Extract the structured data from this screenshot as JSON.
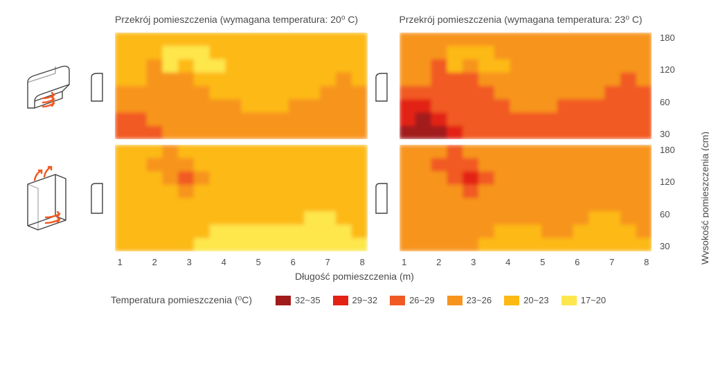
{
  "titles": {
    "t20": "Przekrój pomieszczenia (wymagana temperatura: 20⁰ C)",
    "t23": "Przekrój pomieszczenia (wymagana temperatura: 23⁰ C)"
  },
  "axes": {
    "xlabel": "Długość pomieszczenia (m)",
    "ylabel": "Wysokość pomieszczenia (cm)",
    "xticks": [
      1,
      2,
      3,
      4,
      5,
      6,
      7,
      8
    ],
    "yticks": [
      180,
      120,
      60,
      30
    ],
    "xlim": [
      0.5,
      8.5
    ],
    "ylim": [
      30,
      180
    ],
    "label_fontsize": 14,
    "tick_fontsize": 13,
    "grid": false,
    "background_color": "#ffffff",
    "text_color": "#4a4a4a"
  },
  "palette": {
    "b1": "#a21b1b",
    "b2": "#e32114",
    "b3": "#f15a22",
    "b4": "#f7941e",
    "b5": "#fdb913",
    "b6": "#fde74c",
    "outline": "#414141",
    "arrow": "#f15a22"
  },
  "legend": {
    "title": "Temperatura pomieszczenia (⁰C)",
    "items": [
      {
        "label": "32~35",
        "band": "b1"
      },
      {
        "label": "29~32",
        "band": "b2"
      },
      {
        "label": "26~29",
        "band": "b3"
      },
      {
        "label": "23~26",
        "band": "b4"
      },
      {
        "label": "20~23",
        "band": "b5"
      },
      {
        "label": "17~20",
        "band": "b6"
      }
    ]
  },
  "heatmaps": {
    "type": "contour-fill",
    "grid_nx": 16,
    "grid_ny": 8,
    "panels": {
      "top_left": {
        "bands": [
          [
            "b5",
            "b5",
            "b5",
            "b5",
            "b5",
            "b5",
            "b5",
            "b5",
            "b5",
            "b5",
            "b5",
            "b5",
            "b5",
            "b5",
            "b5",
            "b5"
          ],
          [
            "b5",
            "b5",
            "b5",
            "b6",
            "b6",
            "b6",
            "b5",
            "b5",
            "b5",
            "b5",
            "b5",
            "b5",
            "b5",
            "b5",
            "b5",
            "b5"
          ],
          [
            "b5",
            "b5",
            "b4",
            "b6",
            "b5",
            "b6",
            "b6",
            "b5",
            "b5",
            "b5",
            "b5",
            "b5",
            "b5",
            "b5",
            "b5",
            "b5"
          ],
          [
            "b5",
            "b5",
            "b4",
            "b4",
            "b4",
            "b5",
            "b5",
            "b5",
            "b5",
            "b5",
            "b5",
            "b5",
            "b5",
            "b5",
            "b4",
            "b5"
          ],
          [
            "b4",
            "b4",
            "b4",
            "b4",
            "b4",
            "b4",
            "b5",
            "b5",
            "b5",
            "b5",
            "b5",
            "b5",
            "b5",
            "b4",
            "b4",
            "b4"
          ],
          [
            "b4",
            "b4",
            "b4",
            "b4",
            "b4",
            "b4",
            "b4",
            "b4",
            "b5",
            "b5",
            "b5",
            "b4",
            "b4",
            "b4",
            "b4",
            "b4"
          ],
          [
            "b3",
            "b3",
            "b4",
            "b4",
            "b4",
            "b4",
            "b4",
            "b4",
            "b4",
            "b4",
            "b4",
            "b4",
            "b4",
            "b4",
            "b4",
            "b4"
          ],
          [
            "b3",
            "b3",
            "b3",
            "b4",
            "b4",
            "b4",
            "b4",
            "b4",
            "b4",
            "b4",
            "b4",
            "b4",
            "b4",
            "b4",
            "b4",
            "b4"
          ]
        ]
      },
      "top_right": {
        "bands": [
          [
            "b4",
            "b4",
            "b4",
            "b4",
            "b4",
            "b4",
            "b4",
            "b4",
            "b4",
            "b4",
            "b4",
            "b4",
            "b4",
            "b4",
            "b4",
            "b4"
          ],
          [
            "b4",
            "b4",
            "b4",
            "b5",
            "b5",
            "b5",
            "b4",
            "b4",
            "b4",
            "b4",
            "b4",
            "b4",
            "b4",
            "b4",
            "b4",
            "b4"
          ],
          [
            "b4",
            "b4",
            "b3",
            "b5",
            "b4",
            "b5",
            "b5",
            "b4",
            "b4",
            "b4",
            "b4",
            "b4",
            "b4",
            "b4",
            "b4",
            "b4"
          ],
          [
            "b4",
            "b4",
            "b3",
            "b3",
            "b3",
            "b4",
            "b4",
            "b4",
            "b4",
            "b4",
            "b4",
            "b4",
            "b4",
            "b4",
            "b3",
            "b4"
          ],
          [
            "b3",
            "b3",
            "b3",
            "b3",
            "b3",
            "b3",
            "b4",
            "b4",
            "b4",
            "b4",
            "b4",
            "b4",
            "b4",
            "b3",
            "b3",
            "b3"
          ],
          [
            "b2",
            "b2",
            "b3",
            "b3",
            "b3",
            "b3",
            "b3",
            "b4",
            "b4",
            "b4",
            "b3",
            "b3",
            "b3",
            "b3",
            "b3",
            "b3"
          ],
          [
            "b2",
            "b1",
            "b2",
            "b3",
            "b3",
            "b3",
            "b3",
            "b3",
            "b3",
            "b3",
            "b3",
            "b3",
            "b3",
            "b3",
            "b3",
            "b3"
          ],
          [
            "b1",
            "b1",
            "b1",
            "b2",
            "b3",
            "b3",
            "b3",
            "b3",
            "b3",
            "b3",
            "b3",
            "b3",
            "b3",
            "b3",
            "b3",
            "b3"
          ]
        ]
      },
      "bottom_left": {
        "bands": [
          [
            "b5",
            "b5",
            "b5",
            "b4",
            "b5",
            "b5",
            "b5",
            "b5",
            "b5",
            "b5",
            "b5",
            "b5",
            "b5",
            "b5",
            "b5",
            "b5"
          ],
          [
            "b5",
            "b5",
            "b4",
            "b4",
            "b4",
            "b5",
            "b5",
            "b5",
            "b5",
            "b5",
            "b5",
            "b5",
            "b5",
            "b5",
            "b5",
            "b5"
          ],
          [
            "b5",
            "b5",
            "b5",
            "b4",
            "b3",
            "b4",
            "b5",
            "b5",
            "b5",
            "b5",
            "b5",
            "b5",
            "b5",
            "b5",
            "b5",
            "b5"
          ],
          [
            "b5",
            "b5",
            "b5",
            "b5",
            "b4",
            "b5",
            "b5",
            "b5",
            "b5",
            "b5",
            "b5",
            "b5",
            "b5",
            "b5",
            "b5",
            "b5"
          ],
          [
            "b5",
            "b5",
            "b5",
            "b5",
            "b5",
            "b5",
            "b5",
            "b5",
            "b5",
            "b5",
            "b5",
            "b5",
            "b5",
            "b5",
            "b5",
            "b5"
          ],
          [
            "b5",
            "b5",
            "b5",
            "b5",
            "b5",
            "b5",
            "b5",
            "b5",
            "b5",
            "b5",
            "b5",
            "b5",
            "b6",
            "b6",
            "b5",
            "b5"
          ],
          [
            "b5",
            "b5",
            "b5",
            "b5",
            "b5",
            "b5",
            "b6",
            "b6",
            "b6",
            "b6",
            "b6",
            "b6",
            "b6",
            "b6",
            "b6",
            "b5"
          ],
          [
            "b5",
            "b5",
            "b5",
            "b5",
            "b5",
            "b6",
            "b6",
            "b6",
            "b6",
            "b6",
            "b6",
            "b6",
            "b6",
            "b6",
            "b6",
            "b6"
          ]
        ]
      },
      "bottom_right": {
        "bands": [
          [
            "b4",
            "b4",
            "b4",
            "b3",
            "b4",
            "b4",
            "b4",
            "b4",
            "b4",
            "b4",
            "b4",
            "b4",
            "b4",
            "b4",
            "b4",
            "b4"
          ],
          [
            "b4",
            "b4",
            "b3",
            "b3",
            "b3",
            "b4",
            "b4",
            "b4",
            "b4",
            "b4",
            "b4",
            "b4",
            "b4",
            "b4",
            "b4",
            "b4"
          ],
          [
            "b4",
            "b4",
            "b4",
            "b3",
            "b2",
            "b3",
            "b4",
            "b4",
            "b4",
            "b4",
            "b4",
            "b4",
            "b4",
            "b4",
            "b4",
            "b4"
          ],
          [
            "b4",
            "b4",
            "b4",
            "b4",
            "b3",
            "b4",
            "b4",
            "b4",
            "b4",
            "b4",
            "b4",
            "b4",
            "b4",
            "b4",
            "b4",
            "b4"
          ],
          [
            "b4",
            "b4",
            "b4",
            "b4",
            "b4",
            "b4",
            "b4",
            "b4",
            "b4",
            "b4",
            "b4",
            "b4",
            "b4",
            "b4",
            "b4",
            "b4"
          ],
          [
            "b4",
            "b4",
            "b4",
            "b4",
            "b4",
            "b4",
            "b4",
            "b4",
            "b4",
            "b4",
            "b4",
            "b4",
            "b5",
            "b5",
            "b4",
            "b4"
          ],
          [
            "b4",
            "b4",
            "b4",
            "b4",
            "b4",
            "b4",
            "b5",
            "b5",
            "b5",
            "b4",
            "b4",
            "b5",
            "b5",
            "b5",
            "b5",
            "b4"
          ],
          [
            "b4",
            "b4",
            "b4",
            "b4",
            "b4",
            "b5",
            "b5",
            "b5",
            "b5",
            "b5",
            "b5",
            "b5",
            "b5",
            "b5",
            "b5",
            "b5"
          ]
        ]
      }
    }
  }
}
